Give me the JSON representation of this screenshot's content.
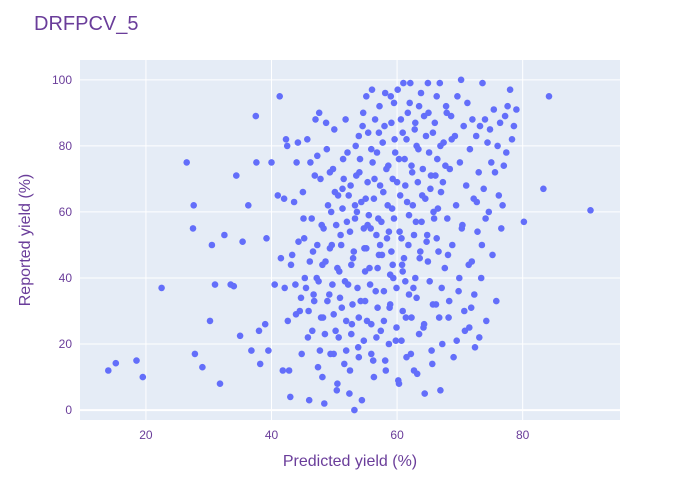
{
  "chart_data": {
    "type": "scatter",
    "title": "DRFPCV_5",
    "xlabel": "Predicted yield (%)",
    "ylabel": "Reported yield (%)",
    "xlim": [
      9.5,
      95.5
    ],
    "ylim": [
      -3,
      106
    ],
    "xticks": [
      20,
      40,
      60,
      80
    ],
    "yticks": [
      0,
      20,
      40,
      60,
      80,
      100
    ],
    "grid": true,
    "legend": "none",
    "colors": {
      "marker": "#636efa",
      "plot_bg": "#e5ecf6",
      "grid": "#ffffff",
      "text": "#6a3d9a"
    },
    "points": [
      [
        14.0,
        12.0
      ],
      [
        15.2,
        14.2
      ],
      [
        18.5,
        15.0
      ],
      [
        19.5,
        10.0
      ],
      [
        22.5,
        37.0
      ],
      [
        26.5,
        75.0
      ],
      [
        27.5,
        55.0
      ],
      [
        27.6,
        62.0
      ],
      [
        27.8,
        17.0
      ],
      [
        29.0,
        13.0
      ],
      [
        30.2,
        27.0
      ],
      [
        30.5,
        50.0
      ],
      [
        31.0,
        38.0
      ],
      [
        31.8,
        8.0
      ],
      [
        32.5,
        53.0
      ],
      [
        33.5,
        38.0
      ],
      [
        34.0,
        37.5
      ],
      [
        34.4,
        71.0
      ],
      [
        35.0,
        22.5
      ],
      [
        35.4,
        51.0
      ],
      [
        36.3,
        62.0
      ],
      [
        36.8,
        18.0
      ],
      [
        37.5,
        89.0
      ],
      [
        37.6,
        75.0
      ],
      [
        38.0,
        24.0
      ],
      [
        38.2,
        14.0
      ],
      [
        39.0,
        26.0
      ],
      [
        39.2,
        52.0
      ],
      [
        39.5,
        18.0
      ],
      [
        40.0,
        75.0
      ],
      [
        40.5,
        38.0
      ],
      [
        41.0,
        65.0
      ],
      [
        41.3,
        95.0
      ],
      [
        41.5,
        46.0
      ],
      [
        41.8,
        12.0
      ],
      [
        42.0,
        64.0
      ],
      [
        42.3,
        82.0
      ],
      [
        42.5,
        80.0
      ],
      [
        42.8,
        12.0
      ],
      [
        42.6,
        27.0
      ],
      [
        43.0,
        4.0
      ],
      [
        43.3,
        47.0
      ],
      [
        43.6,
        63.0
      ],
      [
        43.8,
        38.0
      ],
      [
        44.0,
        75.0
      ],
      [
        44.2,
        81.0
      ],
      [
        44.5,
        30.0
      ],
      [
        44.8,
        17.0
      ],
      [
        45.0,
        66.0
      ],
      [
        45.2,
        52.0
      ],
      [
        45.5,
        37.0
      ],
      [
        45.8,
        22.0
      ],
      [
        46.0,
        3.0
      ],
      [
        46.2,
        75.0
      ],
      [
        46.4,
        58.0
      ],
      [
        46.6,
        48.0
      ],
      [
        46.8,
        33.0
      ],
      [
        47.0,
        88.0
      ],
      [
        47.2,
        40.0
      ],
      [
        47.4,
        13.0
      ],
      [
        47.6,
        90.0
      ],
      [
        47.8,
        70.0
      ],
      [
        48.0,
        56.0
      ],
      [
        48.2,
        28.0
      ],
      [
        48.4,
        2.0
      ],
      [
        48.6,
        45.0
      ],
      [
        48.8,
        79.0
      ],
      [
        49.0,
        62.0
      ],
      [
        49.2,
        35.0
      ],
      [
        49.4,
        17.0
      ],
      [
        49.6,
        50.0
      ],
      [
        49.8,
        73.0
      ],
      [
        50.0,
        85.0
      ],
      [
        50.2,
        24.0
      ],
      [
        50.4,
        6.0
      ],
      [
        50.6,
        65.0
      ],
      [
        50.8,
        42.0
      ],
      [
        51.0,
        53.0
      ],
      [
        51.2,
        31.0
      ],
      [
        51.4,
        76.0
      ],
      [
        51.6,
        14.0
      ],
      [
        51.8,
        88.0
      ],
      [
        52.0,
        57.0
      ],
      [
        52.2,
        38.0
      ],
      [
        52.4,
        5.0
      ],
      [
        52.6,
        68.0
      ],
      [
        52.8,
        26.0
      ],
      [
        53.0,
        46.0
      ],
      [
        53.2,
        0.0
      ],
      [
        53.4,
        80.0
      ],
      [
        53.6,
        60.0
      ],
      [
        53.8,
        19.0
      ],
      [
        54.0,
        72.0
      ],
      [
        54.2,
        33.0
      ],
      [
        54.4,
        3.0
      ],
      [
        54.6,
        90.0
      ],
      [
        54.8,
        49.0
      ],
      [
        55.0,
        64.0
      ],
      [
        55.2,
        27.0
      ],
      [
        55.4,
        84.0
      ],
      [
        55.6,
        43.0
      ],
      [
        55.8,
        55.0
      ],
      [
        56.0,
        97.0
      ],
      [
        56.2,
        15.0
      ],
      [
        56.4,
        70.0
      ],
      [
        56.6,
        36.0
      ],
      [
        56.8,
        78.0
      ],
      [
        57.0,
        58.0
      ],
      [
        57.2,
        92.0
      ],
      [
        57.4,
        24.0
      ],
      [
        57.6,
        47.0
      ],
      [
        57.8,
        66.0
      ],
      [
        58.0,
        86.0
      ],
      [
        58.2,
        12.0
      ],
      [
        58.4,
        52.0
      ],
      [
        58.6,
        74.0
      ],
      [
        58.8,
        31.0
      ],
      [
        59.0,
        95.0
      ],
      [
        59.2,
        61.0
      ],
      [
        59.4,
        40.0
      ],
      [
        59.6,
        82.0
      ],
      [
        59.8,
        21.0
      ],
      [
        60.0,
        69.0
      ],
      [
        60.2,
        9.0
      ],
      [
        60.4,
        54.0
      ],
      [
        60.6,
        88.0
      ],
      [
        60.8,
        44.0
      ],
      [
        61.0,
        99.0
      ],
      [
        61.2,
        76.0
      ],
      [
        61.4,
        28.0
      ],
      [
        61.6,
        63.0
      ],
      [
        61.8,
        50.0
      ],
      [
        62.0,
        93.0
      ],
      [
        62.2,
        17.0
      ],
      [
        62.4,
        72.0
      ],
      [
        62.6,
        37.0
      ],
      [
        62.8,
        85.0
      ],
      [
        63.0,
        57.0
      ],
      [
        63.2,
        11.0
      ],
      [
        63.4,
        79.0
      ],
      [
        63.6,
        46.0
      ],
      [
        63.8,
        96.0
      ],
      [
        64.0,
        65.0
      ],
      [
        64.2,
        25.0
      ],
      [
        64.4,
        5.0
      ],
      [
        64.6,
        83.0
      ],
      [
        64.8,
        53.0
      ],
      [
        65.0,
        90.0
      ],
      [
        65.2,
        39.0
      ],
      [
        65.4,
        71.0
      ],
      [
        65.6,
        14.0
      ],
      [
        65.8,
        60.0
      ],
      [
        66.0,
        87.0
      ],
      [
        66.2,
        32.0
      ],
      [
        66.4,
        76.0
      ],
      [
        66.6,
        48.0
      ],
      [
        66.8,
        99.0
      ],
      [
        67.0,
        66.0
      ],
      [
        67.2,
        20.0
      ],
      [
        67.4,
        81.0
      ],
      [
        67.6,
        43.0
      ],
      [
        67.8,
        92.0
      ],
      [
        68.0,
        58.0
      ],
      [
        68.2,
        28.0
      ],
      [
        68.4,
        73.0
      ],
      [
        68.6,
        89.0
      ],
      [
        68.8,
        50.0
      ],
      [
        69.0,
        16.0
      ],
      [
        69.2,
        83.0
      ],
      [
        69.4,
        62.0
      ],
      [
        69.6,
        95.0
      ],
      [
        69.8,
        36.0
      ],
      [
        70.0,
        75.0
      ],
      [
        70.2,
        100.0
      ],
      [
        70.4,
        56.0
      ],
      [
        70.6,
        86.0
      ],
      [
        70.8,
        24.0
      ],
      [
        71.0,
        68.0
      ],
      [
        71.2,
        93.0
      ],
      [
        71.4,
        44.0
      ],
      [
        71.6,
        79.0
      ],
      [
        71.8,
        31.0
      ],
      [
        72.0,
        88.0
      ],
      [
        72.2,
        64.0
      ],
      [
        72.4,
        19.0
      ],
      [
        72.6,
        83.0
      ],
      [
        72.8,
        54.0
      ],
      [
        73.0,
        72.0
      ],
      [
        73.2,
        86.0
      ],
      [
        73.4,
        40.0
      ],
      [
        73.6,
        99.0
      ],
      [
        73.8,
        67.0
      ],
      [
        74.0,
        88.0
      ],
      [
        74.2,
        27.0
      ],
      [
        74.4,
        81.0
      ],
      [
        74.6,
        60.0
      ],
      [
        74.8,
        85.0
      ],
      [
        75.0,
        75.0
      ],
      [
        75.2,
        47.0
      ],
      [
        75.4,
        91.0
      ],
      [
        75.6,
        72.0
      ],
      [
        75.8,
        33.0
      ],
      [
        76.0,
        80.0
      ],
      [
        76.2,
        65.0
      ],
      [
        76.4,
        87.0
      ],
      [
        76.6,
        55.0
      ],
      [
        76.8,
        62.0
      ],
      [
        77.0,
        74.0
      ],
      [
        77.2,
        89.0
      ],
      [
        77.4,
        78.0
      ],
      [
        77.6,
        92.0
      ],
      [
        78.0,
        97.0
      ],
      [
        78.3,
        82.0
      ],
      [
        78.6,
        86.0
      ],
      [
        79.0,
        91.0
      ],
      [
        80.2,
        57.0
      ],
      [
        83.3,
        67.0
      ],
      [
        84.2,
        95.0
      ],
      [
        90.8,
        60.5
      ],
      [
        55.1,
        95.0
      ],
      [
        56.5,
        88.0
      ],
      [
        58.1,
        96.0
      ],
      [
        60.1,
        97.0
      ],
      [
        62.1,
        99.0
      ],
      [
        63.5,
        92.0
      ],
      [
        64.9,
        99.0
      ],
      [
        66.3,
        95.0
      ],
      [
        59.5,
        93.0
      ],
      [
        61.7,
        90.0
      ],
      [
        54.5,
        86.0
      ],
      [
        57.1,
        84.0
      ],
      [
        59.1,
        87.0
      ],
      [
        60.9,
        84.0
      ],
      [
        62.9,
        87.0
      ],
      [
        64.3,
        89.0
      ],
      [
        65.7,
        84.0
      ],
      [
        67.9,
        90.0
      ],
      [
        53.9,
        83.0
      ],
      [
        55.9,
        79.0
      ],
      [
        57.7,
        81.0
      ],
      [
        59.7,
        78.0
      ],
      [
        61.5,
        82.0
      ],
      [
        63.1,
        80.0
      ],
      [
        65.1,
        78.0
      ],
      [
        66.9,
        80.0
      ],
      [
        68.7,
        82.0
      ],
      [
        52.1,
        78.0
      ],
      [
        54.1,
        76.0
      ],
      [
        56.1,
        75.0
      ],
      [
        58.3,
        73.0
      ],
      [
        60.3,
        76.0
      ],
      [
        62.3,
        74.0
      ],
      [
        64.1,
        73.0
      ],
      [
        66.1,
        71.0
      ],
      [
        67.7,
        74.0
      ],
      [
        51.5,
        70.0
      ],
      [
        53.5,
        71.0
      ],
      [
        55.3,
        69.0
      ],
      [
        57.3,
        68.0
      ],
      [
        59.3,
        70.0
      ],
      [
        61.3,
        68.0
      ],
      [
        63.3,
        69.0
      ],
      [
        65.3,
        67.0
      ],
      [
        67.3,
        69.0
      ],
      [
        50.1,
        66.0
      ],
      [
        52.3,
        65.0
      ],
      [
        54.3,
        63.0
      ],
      [
        56.3,
        64.0
      ],
      [
        58.5,
        62.0
      ],
      [
        60.5,
        65.0
      ],
      [
        62.5,
        62.0
      ],
      [
        64.5,
        64.0
      ],
      [
        66.5,
        61.0
      ],
      [
        49.5,
        60.0
      ],
      [
        51.3,
        61.0
      ],
      [
        53.3,
        58.0
      ],
      [
        55.5,
        59.0
      ],
      [
        57.5,
        57.0
      ],
      [
        59.5,
        58.0
      ],
      [
        61.9,
        59.0
      ],
      [
        63.9,
        57.0
      ],
      [
        65.9,
        58.0
      ],
      [
        48.3,
        55.0
      ],
      [
        50.3,
        56.0
      ],
      [
        52.5,
        54.0
      ],
      [
        54.7,
        55.0
      ],
      [
        56.7,
        53.0
      ],
      [
        58.7,
        54.0
      ],
      [
        60.7,
        52.0
      ],
      [
        62.7,
        53.0
      ],
      [
        64.7,
        51.0
      ],
      [
        47.3,
        50.0
      ],
      [
        49.3,
        49.0
      ],
      [
        51.1,
        50.0
      ],
      [
        53.1,
        48.0
      ],
      [
        55.1,
        49.0
      ],
      [
        57.1,
        47.0
      ],
      [
        59.1,
        48.0
      ],
      [
        61.1,
        46.0
      ],
      [
        63.7,
        48.0
      ],
      [
        46.1,
        45.0
      ],
      [
        48.1,
        44.0
      ],
      [
        50.5,
        43.0
      ],
      [
        52.7,
        44.0
      ],
      [
        54.9,
        42.0
      ],
      [
        56.9,
        43.0
      ],
      [
        58.9,
        41.0
      ],
      [
        60.9,
        42.0
      ],
      [
        62.9,
        40.0
      ],
      [
        45.3,
        40.0
      ],
      [
        47.5,
        39.0
      ],
      [
        49.7,
        38.0
      ],
      [
        51.7,
        39.0
      ],
      [
        53.7,
        37.0
      ],
      [
        55.7,
        38.0
      ],
      [
        57.9,
        36.0
      ],
      [
        59.9,
        37.0
      ],
      [
        61.9,
        35.0
      ],
      [
        44.7,
        34.0
      ],
      [
        46.7,
        35.0
      ],
      [
        48.9,
        33.0
      ],
      [
        50.9,
        34.0
      ],
      [
        52.9,
        32.0
      ],
      [
        54.9,
        33.0
      ],
      [
        56.9,
        31.0
      ],
      [
        58.9,
        32.0
      ],
      [
        60.9,
        30.0
      ],
      [
        43.9,
        29.0
      ],
      [
        45.9,
        30.0
      ],
      [
        47.9,
        28.0
      ],
      [
        49.9,
        29.0
      ],
      [
        51.9,
        27.0
      ],
      [
        53.9,
        28.0
      ],
      [
        55.9,
        26.0
      ],
      [
        57.9,
        27.0
      ],
      [
        59.9,
        25.0
      ],
      [
        62.3,
        28.0
      ],
      [
        64.3,
        26.0
      ],
      [
        46.5,
        24.0
      ],
      [
        48.5,
        23.0
      ],
      [
        50.7,
        22.0
      ],
      [
        52.7,
        23.0
      ],
      [
        54.7,
        21.0
      ],
      [
        56.7,
        22.0
      ],
      [
        58.7,
        20.0
      ],
      [
        60.7,
        21.0
      ],
      [
        63.5,
        23.0
      ],
      [
        47.7,
        18.0
      ],
      [
        49.9,
        17.0
      ],
      [
        51.9,
        18.0
      ],
      [
        53.9,
        16.0
      ],
      [
        55.9,
        17.0
      ],
      [
        58.1,
        15.0
      ],
      [
        61.5,
        16.0
      ],
      [
        65.5,
        18.0
      ],
      [
        69.5,
        21.0
      ],
      [
        71.5,
        25.0
      ],
      [
        73.1,
        22.0
      ],
      [
        66.7,
        28.0
      ],
      [
        68.3,
        33.0
      ],
      [
        70.7,
        30.0
      ],
      [
        72.3,
        35.0
      ],
      [
        69.9,
        40.0
      ],
      [
        71.9,
        45.0
      ],
      [
        73.5,
        50.0
      ],
      [
        70.3,
        55.0
      ],
      [
        74.1,
        58.0
      ],
      [
        72.7,
        63.0
      ],
      [
        68.1,
        47.0
      ],
      [
        66.3,
        52.0
      ],
      [
        64.9,
        45.0
      ],
      [
        67.1,
        37.0
      ],
      [
        65.7,
        32.0
      ],
      [
        63.1,
        34.0
      ],
      [
        61.3,
        39.0
      ],
      [
        59.3,
        44.0
      ],
      [
        57.3,
        50.0
      ],
      [
        55.3,
        56.0
      ],
      [
        53.3,
        62.0
      ],
      [
        51.3,
        67.0
      ],
      [
        49.3,
        72.0
      ],
      [
        47.3,
        77.0
      ],
      [
        45.7,
        82.0
      ],
      [
        48.7,
        87.0
      ],
      [
        46.9,
        71.0
      ],
      [
        45.1,
        58.0
      ],
      [
        44.3,
        51.0
      ],
      [
        43.1,
        44.0
      ],
      [
        42.1,
        37.0
      ],
      [
        60.3,
        8.0
      ],
      [
        62.7,
        12.0
      ],
      [
        66.9,
        6.0
      ],
      [
        56.3,
        10.0
      ],
      [
        52.5,
        12.0
      ],
      [
        50.5,
        8.0
      ],
      [
        48.1,
        10.0
      ]
    ]
  }
}
